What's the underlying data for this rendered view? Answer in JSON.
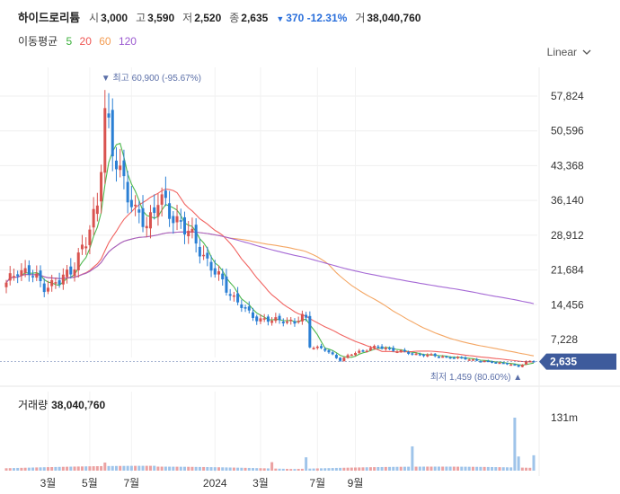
{
  "header": {
    "stock_name": "하이드로리튬",
    "open_label": "시",
    "open": "3,000",
    "high_label": "고",
    "high": "3,590",
    "low_label": "저",
    "low": "2,520",
    "close_label": "종",
    "close": "2,635",
    "change": "370",
    "change_pct": "-12.31%",
    "volume_label": "거",
    "volume": "38,040,760"
  },
  "moving_average": {
    "title": "이동평균",
    "periods": [
      {
        "label": "5",
        "color": "#3bb03b"
      },
      {
        "label": "20",
        "color": "#ef5350"
      },
      {
        "label": "60",
        "color": "#f39c52"
      },
      {
        "label": "120",
        "color": "#9b59d0"
      }
    ]
  },
  "scale_mode": "Linear",
  "colors": {
    "up": "#d9534f",
    "down": "#2a7fd4",
    "current_tag": "#3e5b9c",
    "annotation": "#5b6fa8"
  },
  "chart_data": {
    "type": "candlestick",
    "x_ticks": [
      "3월",
      "5월",
      "7월",
      "2024",
      "3월",
      "7월",
      "9월"
    ],
    "y_ticks": [
      "57,824",
      "50,596",
      "43,368",
      "36,140",
      "28,912",
      "21,684",
      "14,456",
      "7,228"
    ],
    "y_tick_values": [
      57824,
      50596,
      43368,
      36140,
      28912,
      21684,
      14456,
      7228
    ],
    "current_price_label": "2,635",
    "current_price": 2635,
    "max_label": "최고",
    "max_value": "60,900 (-95.67%)",
    "max_price": 60900,
    "min_label": "최저",
    "min_value": "1,459 (80.60%)",
    "min_price": 1459,
    "volume_title": "거래량",
    "volume_value": "38,040,760",
    "volume_tick": "131m",
    "volume_tick_value": 131000000,
    "keypoints": [
      [
        0,
        18500
      ],
      [
        3,
        22000
      ],
      [
        6,
        21000
      ],
      [
        10,
        18500
      ],
      [
        14,
        19000
      ],
      [
        17,
        22000
      ],
      [
        21,
        27000
      ],
      [
        24,
        36000
      ],
      [
        26,
        55000
      ],
      [
        28,
        45000
      ],
      [
        31,
        41000
      ],
      [
        34,
        33000
      ],
      [
        37,
        31000
      ],
      [
        40,
        37000
      ],
      [
        43,
        33000
      ],
      [
        46,
        32000
      ],
      [
        49,
        28000
      ],
      [
        52,
        25000
      ],
      [
        55,
        21000
      ],
      [
        58,
        18000
      ],
      [
        61,
        15000
      ],
      [
        64,
        12500
      ],
      [
        67,
        11500
      ],
      [
        70,
        11000
      ],
      [
        73,
        11500
      ],
      [
        76,
        10500
      ],
      [
        78,
        12000
      ],
      [
        79,
        11500
      ],
      [
        80,
        6000
      ],
      [
        84,
        5000
      ],
      [
        88,
        3000
      ],
      [
        92,
        4500
      ],
      [
        96,
        5500
      ],
      [
        100,
        5500
      ],
      [
        105,
        4500
      ],
      [
        110,
        4000
      ],
      [
        115,
        3700
      ],
      [
        118,
        3400
      ],
      [
        121,
        3300
      ],
      [
        125,
        2700
      ],
      [
        129,
        2500
      ],
      [
        133,
        2000
      ],
      [
        135,
        1600
      ],
      [
        137,
        2700
      ],
      [
        139,
        2635
      ]
    ],
    "volume_bars": [
      {
        "i": 26,
        "v": 20000000
      },
      {
        "i": 70,
        "v": 21000000
      },
      {
        "i": 79,
        "v": 33000000
      },
      {
        "i": 107,
        "v": 60000000
      },
      {
        "i": 134,
        "v": 131000000
      },
      {
        "i": 135,
        "v": 35000000
      },
      {
        "i": 139,
        "v": 38040760
      }
    ]
  }
}
